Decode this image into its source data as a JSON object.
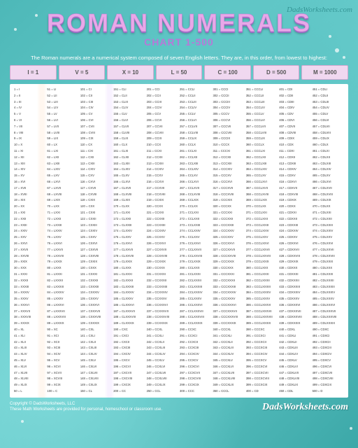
{
  "title": "ROMAN NUMERALS",
  "subtitle": "CHART 1-500",
  "watermark": "DadsWorksheets.com",
  "intro": "The Roman numerals are a numerical system composed of seven English letters. They are, in this order, from lowest to highest:",
  "legend": [
    {
      "label": "I = 1"
    },
    {
      "label": "V = 5"
    },
    {
      "label": "X = 10"
    },
    {
      "label": "L = 50"
    },
    {
      "label": "C = 100"
    },
    {
      "label": "D = 500"
    },
    {
      "label": "M = 1000"
    }
  ],
  "chart": {
    "start": 1,
    "end": 500,
    "columns": 10,
    "rows_per_column": 50
  },
  "footer": {
    "copyright": "Copyright © DadsWorksheets, LLC",
    "tagline": "These Math Worksheets are provided for personal, homeschool or classroom use.",
    "brand": "DadsWorksheets.com"
  },
  "style": {
    "title_color": "#e8a8e8",
    "subtitle_color": "#b878d8",
    "legend_bg": "#f0d8f0",
    "legend_border": "#d0a8d0",
    "chart_bg": "#ffffff",
    "text_color": "#333333",
    "title_fontsize": 36,
    "subtitle_fontsize": 14,
    "row_fontsize": 4.2
  }
}
